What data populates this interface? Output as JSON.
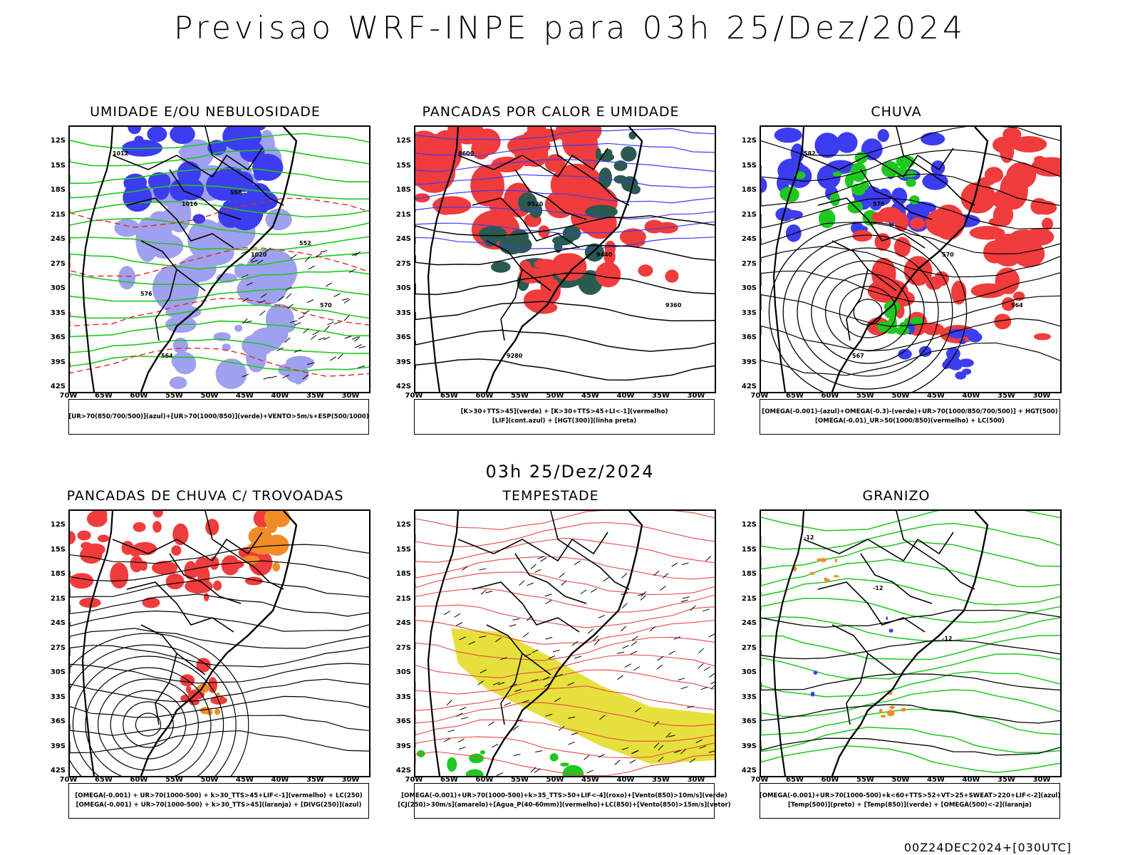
{
  "main_title": "Previsao WRF-INPE  para 03h 25/Dez/2024",
  "mid_title": "03h 25/Dez/2024",
  "footer": "00Z24DEC2024+[030UTC]",
  "axes": {
    "lat_labels": [
      "12S",
      "15S",
      "18S",
      "21S",
      "24S",
      "27S",
      "30S",
      "33S",
      "36S",
      "39S",
      "42S"
    ],
    "lon_labels": [
      "70W",
      "65W",
      "60W",
      "55W",
      "50W",
      "45W",
      "40W",
      "35W",
      "30W"
    ]
  },
  "colors": {
    "red": "#f03c3c",
    "blue": "#3c3cf0",
    "green": "#1ec81e",
    "lightblue": "#a0a0f0",
    "darkteal": "#2a5a50",
    "yellow": "#e6e03c",
    "orange": "#f08c28",
    "black": "#000000"
  },
  "panels": [
    {
      "title": "UMIDADE E/OU NEBULOSIDADE",
      "legend": [
        "[UR>70(850/700/500)](azul)+[UR>70(1000/850)](verde)+VENTO>5m/s+ESP(500/1000)"
      ],
      "labels": [
        "1012",
        "1016",
        "1020",
        "570",
        "564",
        "558",
        "552",
        "576"
      ]
    },
    {
      "title": "PANCADAS POR CALOR E UMIDADE",
      "legend": [
        "[K>30+TTS>45](verde) + [K>30+TTS>45+LI<-1](vermelho)",
        "[LIF](cont.azul) + [HGT(300)](linha preta)"
      ],
      "labels": [
        "9600",
        "9520",
        "9440",
        "9360",
        "9280"
      ]
    },
    {
      "title": "CHUVA",
      "legend": [
        "[OMEGA(-0.001)-(azul)+OMEGA(-0.3)-(verde)+UR>70(1000/850/700/500)] + HGT(500)",
        "[OMEGA(-0.01)_UR>50(1000/850)(vermelho) + LC(500)"
      ],
      "labels": [
        "582",
        "576",
        "570",
        "564",
        "567"
      ]
    },
    {
      "title": "PANCADAS DE CHUVA C/ TROVOADAS",
      "legend": [
        "[OMEGA(-0.001) + UR>70(1000-500) + k>30_TTS>45+LIF<-1](vermelho) + LC(250)",
        "[OMEGA(-0.001) + UR>70(1000-500) + k>30_TTS>45](laranja) + [DIVG(250)](azul)"
      ],
      "labels": []
    },
    {
      "title": "TEMPESTADE",
      "legend": [
        "[OMEGA(-0.001)+UR>70(1000-500)+k>35_TTS>50+LIF<-4](roxo)+[Vento(850)>10m/s](verde)",
        "[CJ(250)>30m/s](amarelo)+[Agua_P(40-60mm)](vermelho)+LC(850)+[Vento(850)>15m/s](vetor)"
      ],
      "labels": []
    },
    {
      "title": "GRANIZO",
      "legend": [
        "[OMEGA(-0.001)+UR>70(1000-500)+k<60+TTS>52+VT>25+SWEAT>220+LIF<-2](azul)",
        "[Temp(500)](preto) + [Temp(850)](verde) + [OMEGA(500)<-2](laranja)"
      ],
      "labels": [
        "-12",
        "-12",
        "-12"
      ]
    }
  ]
}
